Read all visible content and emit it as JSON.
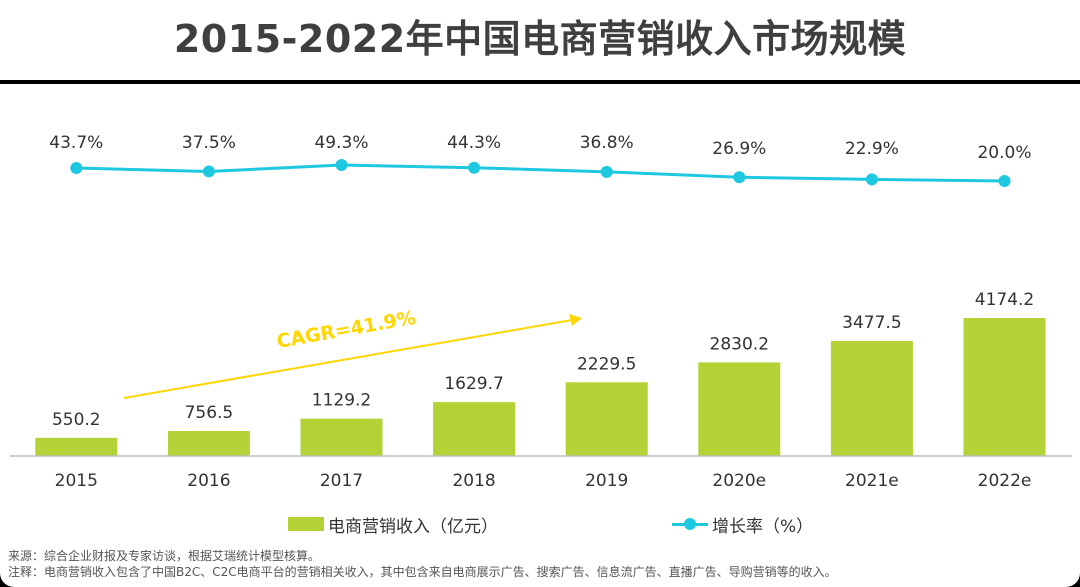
{
  "title": "2015-2022年中国电商营销收入市场规模",
  "legend": {
    "bar_label": "电商营销收入（亿元）",
    "line_label": "增长率（%）"
  },
  "cagr_label": "CAGR=41.9%",
  "notes": {
    "source": "来源：综合企业财报及专家访谈，根据艾瑞统计模型核算。",
    "remark": "注释：电商营销收入包含了中国B2C、C2C电商平台的营销相关收入，其中包含来自电商展示广告、搜索广告、信息流广告、直播广告、导购营销等的收入。"
  },
  "colors": {
    "bar": "#b2d235",
    "line": "#1ec8e1",
    "cagr_arrow": "#ffd600",
    "text": "#333333"
  },
  "chart_data": {
    "type": "bar+line",
    "categories": [
      "2015",
      "2016",
      "2017",
      "2018",
      "2019",
      "2020e",
      "2021e",
      "2022e"
    ],
    "series": [
      {
        "name": "电商营销收入（亿元）",
        "type": "bar",
        "values": [
          550.2,
          756.5,
          1129.2,
          1629.7,
          2229.5,
          2830.2,
          3477.5,
          4174.2
        ],
        "labels": [
          "550.2",
          "756.5",
          "1129.2",
          "1629.7",
          "2229.5",
          "2830.2",
          "3477.5",
          "4174.2"
        ]
      },
      {
        "name": "增长率（%）",
        "type": "line",
        "values": [
          43.7,
          37.5,
          49.3,
          44.3,
          36.8,
          26.9,
          22.9,
          20.0
        ],
        "labels": [
          "43.7%",
          "37.5%",
          "49.3%",
          "44.3%",
          "36.8%",
          "26.9%",
          "22.9%",
          "20.0%"
        ]
      }
    ],
    "annotation": "CAGR=41.9%",
    "grid": false,
    "legend_position": "bottom"
  }
}
